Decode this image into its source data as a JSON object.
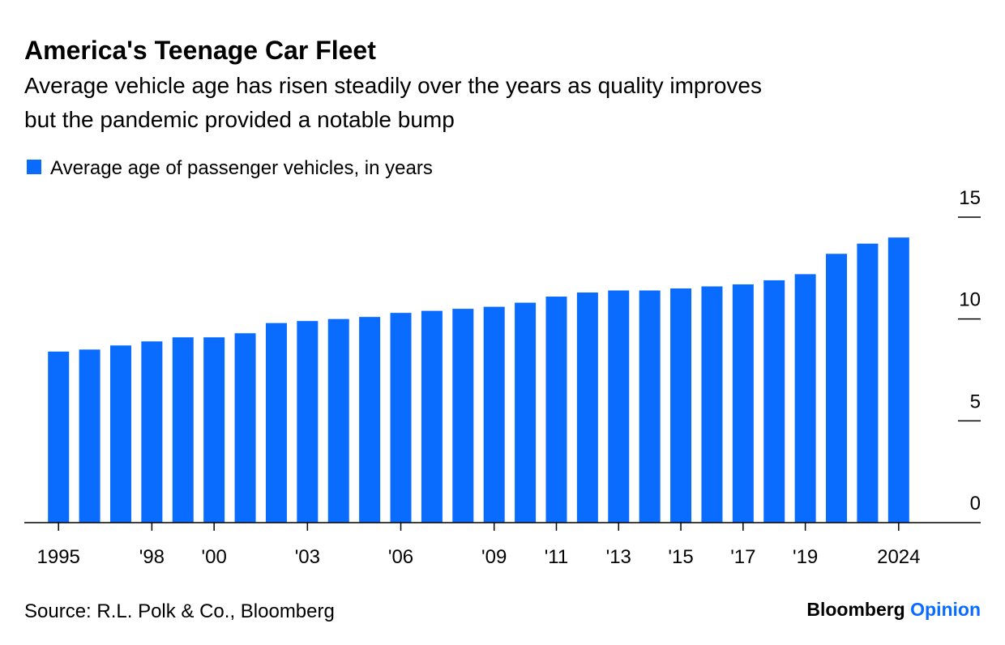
{
  "chart_data": {
    "type": "bar",
    "title": "America's Teenage Car Fleet",
    "subtitle": [
      "Average vehicle age has risen steadily over the years as quality improves",
      "but the pandemic provided a notable bump"
    ],
    "categories": [
      "1995",
      null,
      null,
      "'98",
      null,
      "'00",
      null,
      null,
      "'03",
      null,
      null,
      "'06",
      null,
      null,
      "'09",
      null,
      "'11",
      null,
      "'13",
      null,
      "'15",
      null,
      "'17",
      null,
      "'19",
      null,
      null,
      "2024"
    ],
    "series": [
      {
        "name": "Average age of passenger vehicles, in years",
        "color": "#0a6cff",
        "values": [
          8.4,
          8.5,
          8.7,
          8.9,
          9.1,
          9.1,
          9.3,
          9.8,
          9.9,
          10.0,
          10.1,
          10.3,
          10.4,
          10.5,
          10.6,
          10.8,
          11.1,
          11.3,
          11.4,
          11.4,
          11.5,
          11.6,
          11.7,
          11.9,
          12.2,
          13.2,
          13.7,
          14.0
        ]
      }
    ],
    "ylim": [
      0,
      15
    ],
    "yticks": [
      0,
      5,
      10,
      15
    ],
    "source": "Source: R.L. Polk & Co., Bloomberg",
    "brand": [
      "Bloomberg",
      "Opinion"
    ]
  }
}
